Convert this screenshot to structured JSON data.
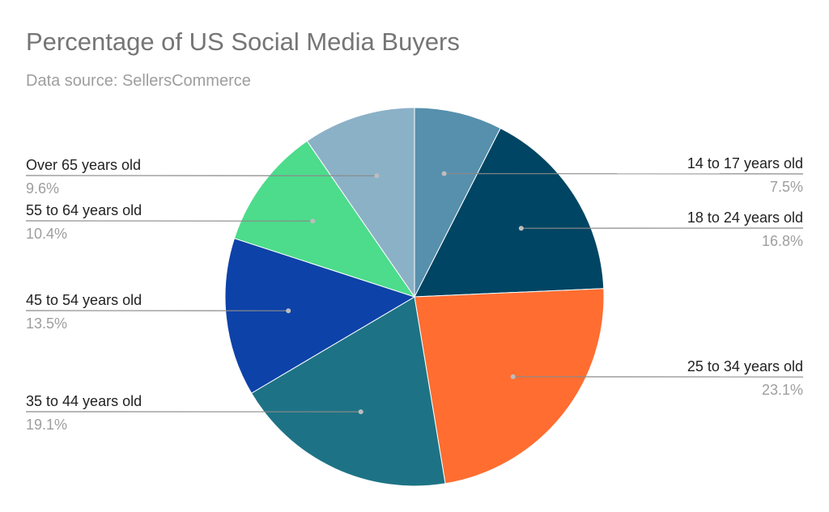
{
  "chart_data": {
    "type": "pie",
    "title": "Percentage of US Social Media Buyers",
    "subtitle": "Data source: SellersCommerce",
    "slices": [
      {
        "label": "14 to 17 years old",
        "value": 7.5,
        "display": "7.5%",
        "color": "#5690ad"
      },
      {
        "label": "18 to 24 years old",
        "value": 16.8,
        "display": "16.8%",
        "color": "#004563"
      },
      {
        "label": "25 to 34 years old",
        "value": 23.1,
        "display": "23.1%",
        "color": "#ff6d31"
      },
      {
        "label": "35 to 44 years old",
        "value": 19.1,
        "display": "19.1%",
        "color": "#1d7385"
      },
      {
        "label": "45 to 54 years old",
        "value": 13.5,
        "display": "13.5%",
        "color": "#0d42a8"
      },
      {
        "label": "55 to 64 years old",
        "value": 10.4,
        "display": "10.4%",
        "color": "#4cdc8b"
      },
      {
        "label": "Over 65 years old",
        "value": 9.6,
        "display": "9.6%",
        "color": "#8bb1c7"
      }
    ],
    "start": "12 o'clock",
    "direction": "clockwise",
    "label_style": "callout lines to both sides"
  }
}
